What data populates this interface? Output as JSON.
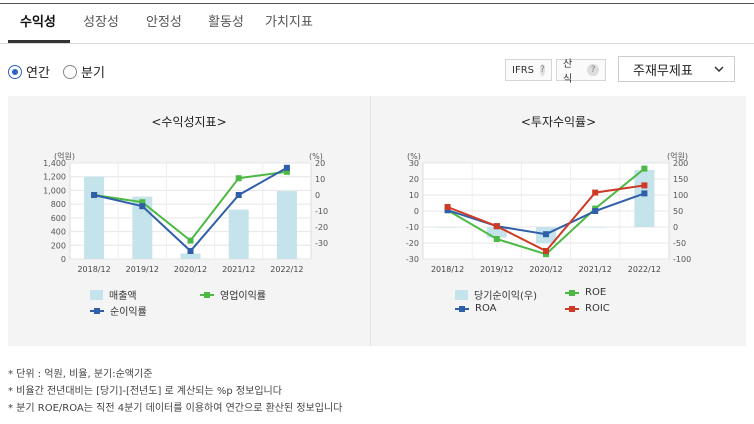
{
  "tabs": [
    "수익성",
    "성장성",
    "안정성",
    "활동성",
    "가치지표"
  ],
  "period_options": {
    "annual": "연간",
    "quarterly": "분기",
    "selected": "annual"
  },
  "ifrs_label": "IFRS",
  "calc_label": "산식",
  "help_glyph": "?",
  "statement_select": "주재무제표",
  "colors": {
    "bar": "#c5e3ea",
    "green": "#4cb944",
    "blue": "#2f5fa8",
    "red": "#cf3a27"
  },
  "left_chart": {
    "title": "<수익성지표>",
    "left_unit": "(억원)",
    "right_unit": "(%)",
    "legend": {
      "bar": "매출액",
      "green": "영업이익률",
      "blue": "순이익률"
    }
  },
  "right_chart": {
    "title": "<투자수익률>",
    "left_unit": "(%)",
    "right_unit": "(억원)",
    "legend": {
      "bar": "당기순이익(우)",
      "green": "ROE",
      "blue": "ROA",
      "red": "ROIC"
    }
  },
  "notes": [
    "* 단위 : 억원, 비율, 분기:순액기준",
    "* 비율간 전년대비는 [당기]-[전년도] 로 계산되는 %p 정보입니다",
    "* 분기 ROE/ROA는 직전 4분기 데이터를 이용하여 연간으로 환산된 정보입니다"
  ],
  "chart_data": [
    {
      "type": "bar+line",
      "title": "<수익성지표>",
      "categories": [
        "2018/12",
        "2019/12",
        "2020/12",
        "2021/12",
        "2022/12"
      ],
      "y_left": {
        "label": "(억원)",
        "ticks": [
          0,
          200,
          400,
          600,
          800,
          1000,
          1200,
          1400
        ],
        "tick_labels": [
          "0",
          "200",
          "400",
          "600",
          "800",
          "1,000",
          "1,200",
          "1,400"
        ],
        "range": [
          0,
          1400
        ]
      },
      "y_right": {
        "label": "(%)",
        "ticks": [
          -30,
          -20,
          -10,
          0,
          10,
          20
        ],
        "range": [
          -40,
          20
        ]
      },
      "series": [
        {
          "name": "매출액",
          "kind": "bar",
          "axis": "left",
          "values": [
            1200,
            910,
            80,
            720,
            990
          ]
        },
        {
          "name": "영업이익률",
          "kind": "line",
          "axis": "right",
          "color": "green",
          "values": [
            0,
            -4.5,
            -28.5,
            10.5,
            14.5
          ]
        },
        {
          "name": "순이익률",
          "kind": "line",
          "axis": "right",
          "color": "blue",
          "values": [
            0,
            -7,
            -35,
            0,
            17
          ]
        }
      ],
      "grid": true
    },
    {
      "type": "bar+line",
      "title": "<투자수익률>",
      "categories": [
        "2018/12",
        "2019/12",
        "2020/12",
        "2021/12",
        "2022/12"
      ],
      "y_left": {
        "label": "(%)",
        "ticks": [
          -30,
          -20,
          -10,
          0,
          10,
          20,
          30
        ],
        "range": [
          -30,
          30
        ]
      },
      "y_right": {
        "label": "(억원)",
        "ticks": [
          -100,
          -50,
          0,
          50,
          100,
          150,
          200
        ],
        "range": [
          -100,
          200
        ]
      },
      "series": [
        {
          "name": "당기순이익(우)",
          "kind": "bar",
          "axis": "right",
          "values": [
            -2,
            -33,
            -52,
            -2,
            178
          ]
        },
        {
          "name": "ROE",
          "kind": "line",
          "axis": "left",
          "color": "green",
          "values": [
            0.5,
            -17.5,
            -27,
            1.5,
            26.5
          ]
        },
        {
          "name": "ROA",
          "kind": "line",
          "axis": "left",
          "color": "blue",
          "values": [
            0.5,
            -9.5,
            -14.5,
            0,
            11
          ]
        },
        {
          "name": "ROIC",
          "kind": "line",
          "axis": "left",
          "color": "red",
          "values": [
            2.5,
            -9.5,
            -25,
            11.5,
            16
          ]
        }
      ],
      "grid": true
    }
  ]
}
